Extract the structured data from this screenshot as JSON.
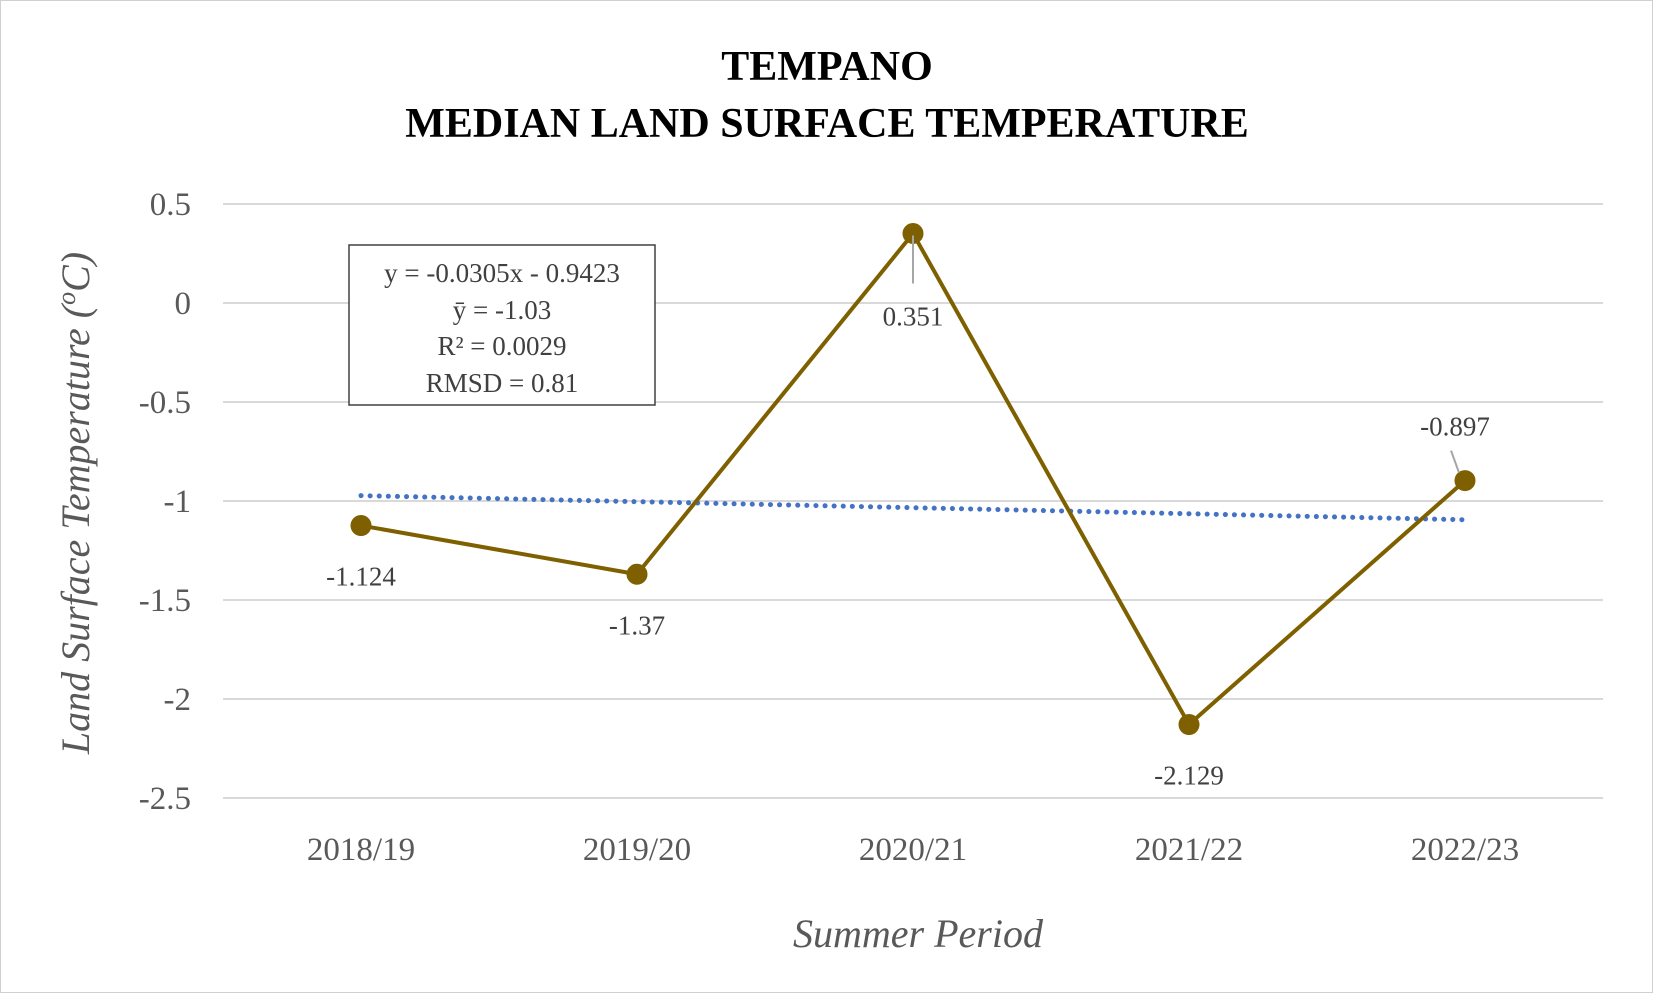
{
  "chart_data": {
    "type": "line",
    "title": [
      "TEMPANO",
      "MEDIAN LAND SURFACE TEMPERATURE"
    ],
    "xlabel": "Summer Period",
    "ylabel": "Land Surface Temperature (",
    "ylabel_sup": "o",
    "ylabel_end": "C)",
    "categories": [
      "2018/19",
      "2019/20",
      "2020/21",
      "2021/22",
      "2022/23"
    ],
    "ylim": [
      -2.5,
      0.5
    ],
    "yticks": [
      0.5,
      0,
      -0.5,
      -1,
      -1.5,
      -2,
      -2.5
    ],
    "ytick_labels": [
      "0.5",
      "0",
      "-0.5",
      "-1",
      "-1.5",
      "-2",
      "-2.5"
    ],
    "grid": true,
    "series": [
      {
        "values": [
          -1.124,
          -1.37,
          0.351,
          -2.129,
          -0.897
        ],
        "labels": [
          "-1.124",
          "-1.37",
          "0.351",
          "-2.129",
          "-0.897"
        ],
        "color": "#7f6000"
      }
    ],
    "trendline": {
      "type": "linear",
      "start": -0.9728,
      "end": -1.0948,
      "color": "#4472c4",
      "style": "dotted"
    },
    "stats_box": [
      "y = -0.0305x - 0.9423",
      "ȳ = -1.03",
      "R² = 0.0029",
      "RMSD = 0.81"
    ]
  }
}
